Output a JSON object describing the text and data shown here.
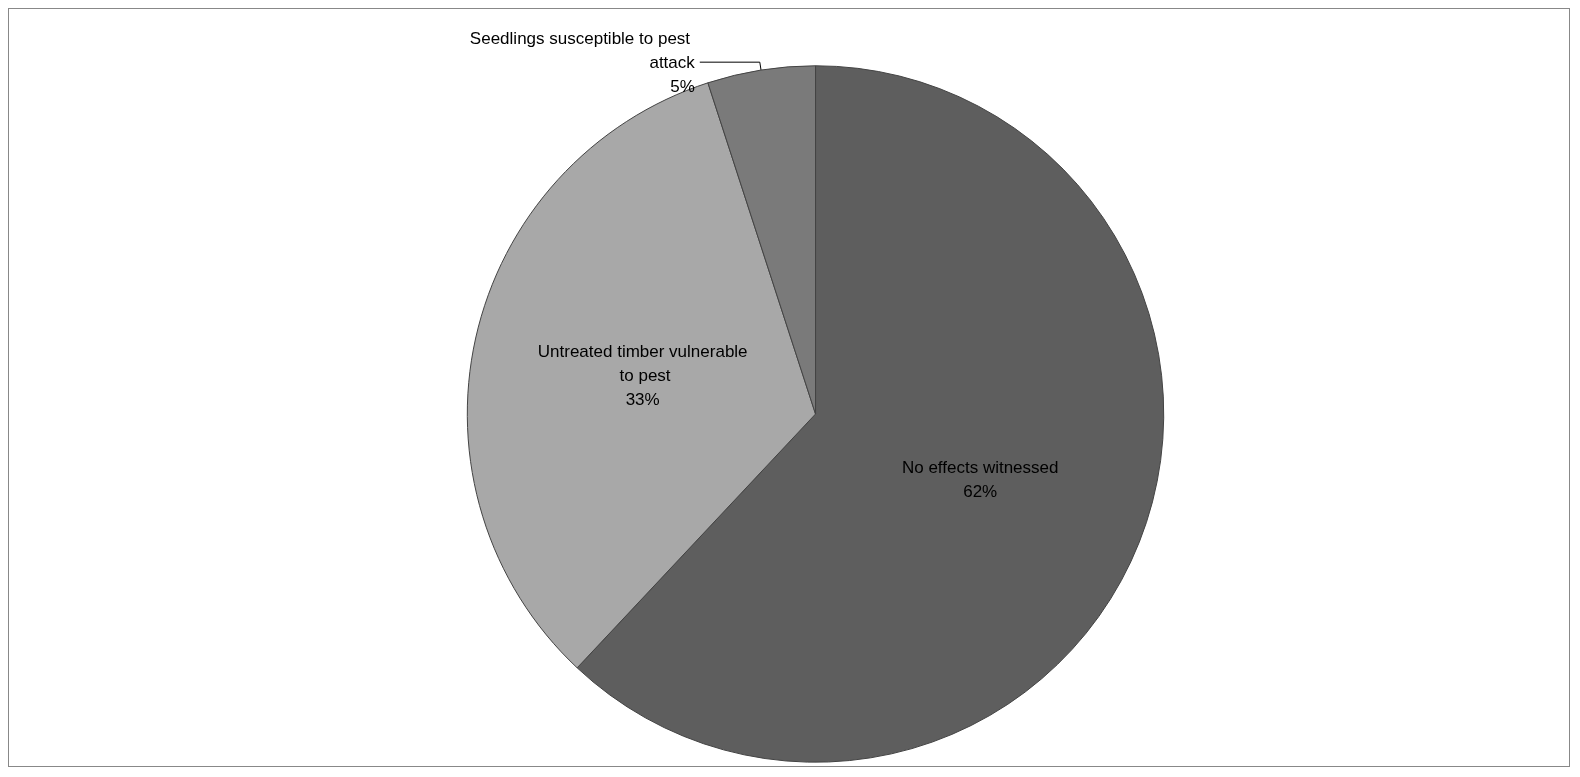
{
  "chart_data": {
    "type": "pie",
    "categories": [
      "No effects witnessed",
      "Untreated timber vulnerable to pest",
      "Seedlings susceptible to pest attack"
    ],
    "values": [
      62,
      33,
      5
    ],
    "colors": [
      "#5e5e5e",
      "#a8a8a8",
      "#7a7a7a"
    ],
    "value_labels": [
      "62%",
      "33%",
      "5%"
    ],
    "legend": false
  }
}
